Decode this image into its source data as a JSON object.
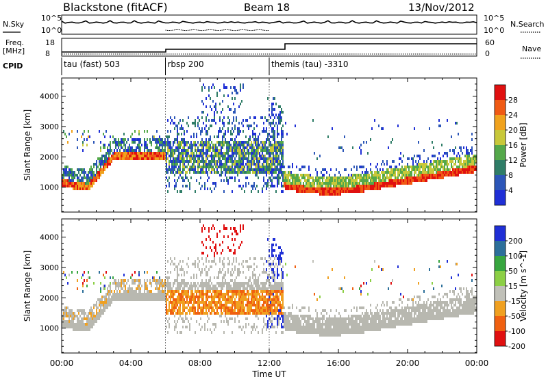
{
  "header": {
    "station": "Blackstone (fitACF)",
    "beam": "Beam 18",
    "date": "13/Nov/2012"
  },
  "status_panels": {
    "nsky_label": "N.Sky",
    "nsearch_label": "N.Search",
    "noise_ticks_left": [
      "10^5",
      "10^0"
    ],
    "noise_ticks_right": [
      "10^5",
      "10^0"
    ],
    "freq_label_top": "Freq.",
    "freq_label_bottom": "[MHz]",
    "freq_ticks": [
      "18",
      "8"
    ],
    "nave_label": "Nave",
    "nave_ticks": [
      "60",
      "0"
    ],
    "cpid_label": "CPID"
  },
  "cpid_segments": [
    {
      "label": "tau (fast) 503",
      "start_hour": 0,
      "end_hour": 6
    },
    {
      "label": "rbsp 200",
      "start_hour": 6,
      "end_hour": 12
    },
    {
      "label": "themis (tau) -3310",
      "start_hour": 12,
      "end_hour": 24
    }
  ],
  "colors": {
    "power_scale": [
      "#1f2fd6",
      "#2c56b8",
      "#2f7d67",
      "#54a84a",
      "#c8c83a",
      "#f0a21d",
      "#f05a14",
      "#e01010"
    ],
    "velocity_scale": [
      "#1f2fd6",
      "#2c6f9a",
      "#37a63f",
      "#8ccf45",
      "#c0c0b8",
      "#f0a020",
      "#f06010",
      "#e01010"
    ],
    "ground_scatter": "#b8b8b0"
  },
  "chart_data": [
    {
      "type": "heatmap",
      "name": "power",
      "ylabel": "Slant Range [km]",
      "xlim_hours": [
        0,
        24
      ],
      "ylim_km": [
        180,
        4600
      ],
      "yticks": [
        "1000",
        "2000",
        "3000",
        "4000"
      ],
      "colorbar_label": "Power [dB]",
      "colorbar_ticks": [
        "4",
        "8",
        "12",
        "16",
        "20",
        "24",
        "28"
      ]
    },
    {
      "type": "heatmap",
      "name": "velocity",
      "xlabel": "Time UT",
      "ylabel": "Slant Range [km]",
      "xlim_hours": [
        0,
        24
      ],
      "ylim_km": [
        180,
        4600
      ],
      "xticks": [
        "00:00",
        "04:00",
        "08:00",
        "12:00",
        "16:00",
        "20:00",
        "00:00"
      ],
      "yticks": [
        "1000",
        "2000",
        "3000",
        "4000"
      ],
      "colorbar_label": "Velocity [m s^-1]",
      "colorbar_ticks": [
        "200",
        "100",
        "50",
        "15",
        "-15",
        "-50",
        "-100",
        "-200"
      ]
    }
  ]
}
